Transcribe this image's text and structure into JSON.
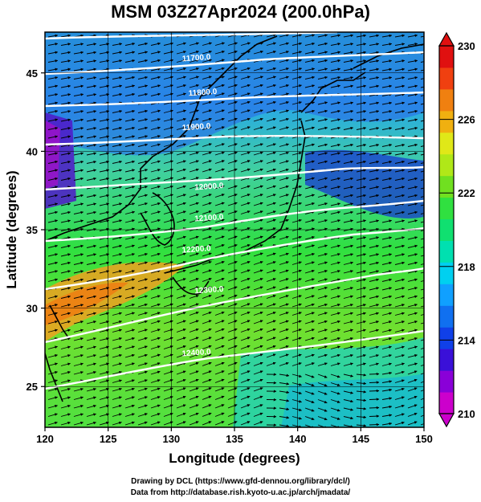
{
  "title": "MSM 03Z27Apr2024 (200.0hPa)",
  "credit_line1": "Drawing by DCL (https://www.gfd-dennou.org/library/dcl/)",
  "credit_line2": "Data from http://database.rish.kyoto-u.ac.jp/arch/jmadata/",
  "map": {
    "xlabel": "Longitude (degrees)",
    "ylabel": "Latitude  (degrees)",
    "lon_range": [
      120,
      150
    ],
    "lat_range": [
      22.4,
      47.6
    ],
    "lon_ticks": [
      120,
      125,
      130,
      135,
      140,
      145,
      150
    ],
    "lat_ticks": [
      25,
      30,
      35,
      40,
      45
    ],
    "contour_labels": [
      {
        "text": "11700.0",
        "lon": 132.0,
        "lat": 45.8
      },
      {
        "text": "11800.0",
        "lon": 132.5,
        "lat": 43.6
      },
      {
        "text": "11900.0",
        "lon": 132.0,
        "lat": 41.4
      },
      {
        "text": "12000.0",
        "lon": 133.0,
        "lat": 37.6
      },
      {
        "text": "12100.0",
        "lon": 133.0,
        "lat": 35.6
      },
      {
        "text": "12200.0",
        "lon": 132.0,
        "lat": 33.6
      },
      {
        "text": "12300.0",
        "lon": 133.0,
        "lat": 31.0
      },
      {
        "text": "12400.0",
        "lon": 132.0,
        "lat": 27.0
      }
    ]
  },
  "colorbar": {
    "min": 210,
    "max": 230,
    "labels": [
      230,
      226,
      222,
      218,
      214,
      210
    ],
    "colors": [
      "#cc00cc",
      "#8a00d8",
      "#3a10d8",
      "#1040e8",
      "#1070f0",
      "#10a0ff",
      "#00d0f0",
      "#00e0b0",
      "#10e070",
      "#30e040",
      "#70e020",
      "#b0e818",
      "#e0e818",
      "#f0b010",
      "#f08010",
      "#f04010",
      "#e01010"
    ]
  }
}
